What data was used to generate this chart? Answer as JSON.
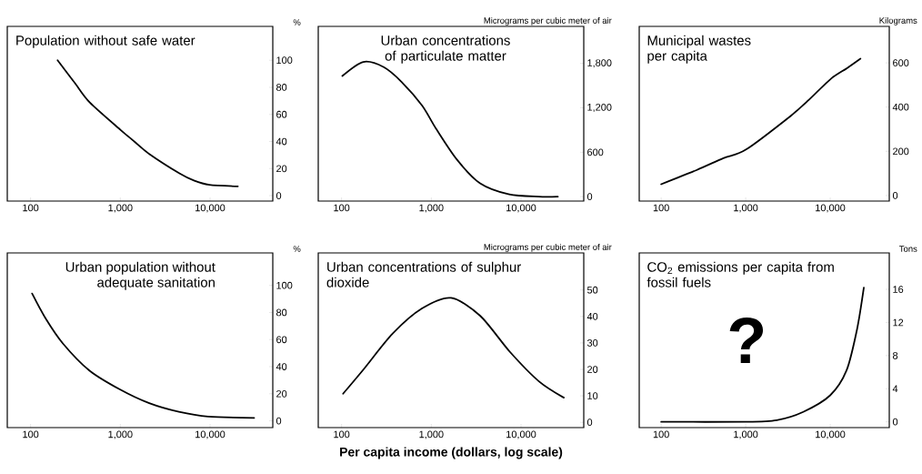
{
  "chart_data": [
    {
      "type": "line",
      "title": "Population without safe water",
      "ylabel": "%",
      "log": "x",
      "color": "#000000",
      "x": [
        200,
        313,
        457,
        1000,
        1450,
        2100,
        4600,
        6600,
        9800,
        20400
      ],
      "values": [
        100,
        83,
        68.8,
        48.7,
        39.7,
        30.8,
        16.3,
        11.2,
        8,
        6.9
      ],
      "xlim": [
        55,
        50000
      ],
      "ylim": [
        -4,
        125
      ],
      "xticks": [
        {
          "value": 100,
          "label": "100"
        },
        {
          "value": 1000,
          "label": "1,000"
        },
        {
          "value": 10000,
          "label": "10,000"
        }
      ],
      "yticks": [
        0,
        20,
        40,
        60,
        80,
        100
      ]
    },
    {
      "type": "line",
      "title": "Urban concentrations of particulate matter",
      "ylabel": "Micrograms per cubic meter of air",
      "log": "x",
      "color": "#000000",
      "x": [
        102,
        175,
        295,
        467,
        790,
        1140,
        1930,
        3500,
        7400,
        15800,
        25700
      ],
      "values": [
        1630,
        1820,
        1750,
        1550,
        1230,
        910,
        500,
        180,
        30,
        0,
        0
      ],
      "xlim": [
        55,
        50000
      ],
      "ylim": [
        -60,
        2300
      ],
      "xticks": [
        {
          "value": 100,
          "label": "100"
        },
        {
          "value": 1000,
          "label": "1,000"
        },
        {
          "value": 10000,
          "label": "10,000"
        }
      ],
      "yticks": [
        0,
        600,
        {
          "value": 1200,
          "label": "1,200"
        },
        {
          "value": 1800,
          "label": "1,800"
        }
      ]
    },
    {
      "type": "line",
      "title": "Municipal wastes per capita",
      "ylabel": "Kilograms",
      "log": "x",
      "color": "#000000",
      "x": [
        100,
        262,
        545,
        1000,
        3380,
        5650,
        10200,
        15800,
        22800
      ],
      "values": [
        51,
        115,
        169,
        207,
        359,
        434,
        528,
        576,
        619
      ],
      "xlim": [
        55,
        50000
      ],
      "ylim": [
        -25,
        765
      ],
      "xticks": [
        {
          "value": 100,
          "label": "100"
        },
        {
          "value": 1000,
          "label": "1,000"
        },
        {
          "value": 10000,
          "label": "10,000"
        }
      ],
      "yticks": [
        0,
        200,
        400,
        600
      ]
    },
    {
      "type": "line",
      "title": "Urban population without adequate sanitation",
      "ylabel": "%",
      "log": "x",
      "color": "#000000",
      "x": [
        104,
        146,
        230,
        455,
        1000,
        2100,
        4500,
        9500,
        31000
      ],
      "values": [
        94,
        76,
        57,
        37,
        23,
        13,
        6.6,
        3.1,
        2.2
      ],
      "xlim": [
        55,
        50000
      ],
      "ylim": [
        -5,
        124
      ],
      "xticks": [
        {
          "value": 100,
          "label": "100"
        },
        {
          "value": 1000,
          "label": "1,000"
        },
        {
          "value": 10000,
          "label": "10,000"
        }
      ],
      "yticks": [
        0,
        20,
        40,
        60,
        80,
        100
      ]
    },
    {
      "type": "line",
      "title": "Urban concentrations of sulphur dioxide",
      "ylabel": "Micrograms per cubic meter of air",
      "xlabel": "Per capita income (dollars, log scale)",
      "log": "x",
      "color": "#000000",
      "x": [
        104,
        176,
        371,
        787,
        1660,
        3520,
        7480,
        15800,
        30000
      ],
      "values": [
        10.8,
        20,
        33.5,
        43,
        47,
        40.2,
        26.7,
        15.5,
        9.3
      ],
      "xlim": [
        55,
        50000
      ],
      "ylim": [
        -2,
        64
      ],
      "xticks": [
        {
          "value": 100,
          "label": "100"
        },
        {
          "value": 1000,
          "label": "1,000"
        },
        {
          "value": 10000,
          "label": "10,000"
        }
      ],
      "yticks": [
        0,
        10,
        20,
        30,
        40,
        50
      ]
    },
    {
      "type": "line",
      "title": "CO$_{2}$ emissions per capita from fossil fuels",
      "ylabel": "Tons",
      "log": "x",
      "color": "#000000",
      "annotations": [
        "?"
      ],
      "x": [
        100,
        1000,
        2330,
        4800,
        10000,
        15600,
        20800,
        25000
      ],
      "values": [
        0,
        0,
        0.2,
        1.2,
        3.2,
        6.2,
        11.2,
        16.2
      ],
      "xlim": [
        55,
        50000
      ],
      "ylim": [
        -0.7,
        20.4
      ],
      "xticks": [
        {
          "value": 100,
          "label": "100"
        },
        {
          "value": 1000,
          "label": "1,000"
        },
        {
          "value": 10000,
          "label": "10,000"
        }
      ],
      "yticks": [
        0,
        4,
        8,
        12,
        16
      ]
    }
  ]
}
